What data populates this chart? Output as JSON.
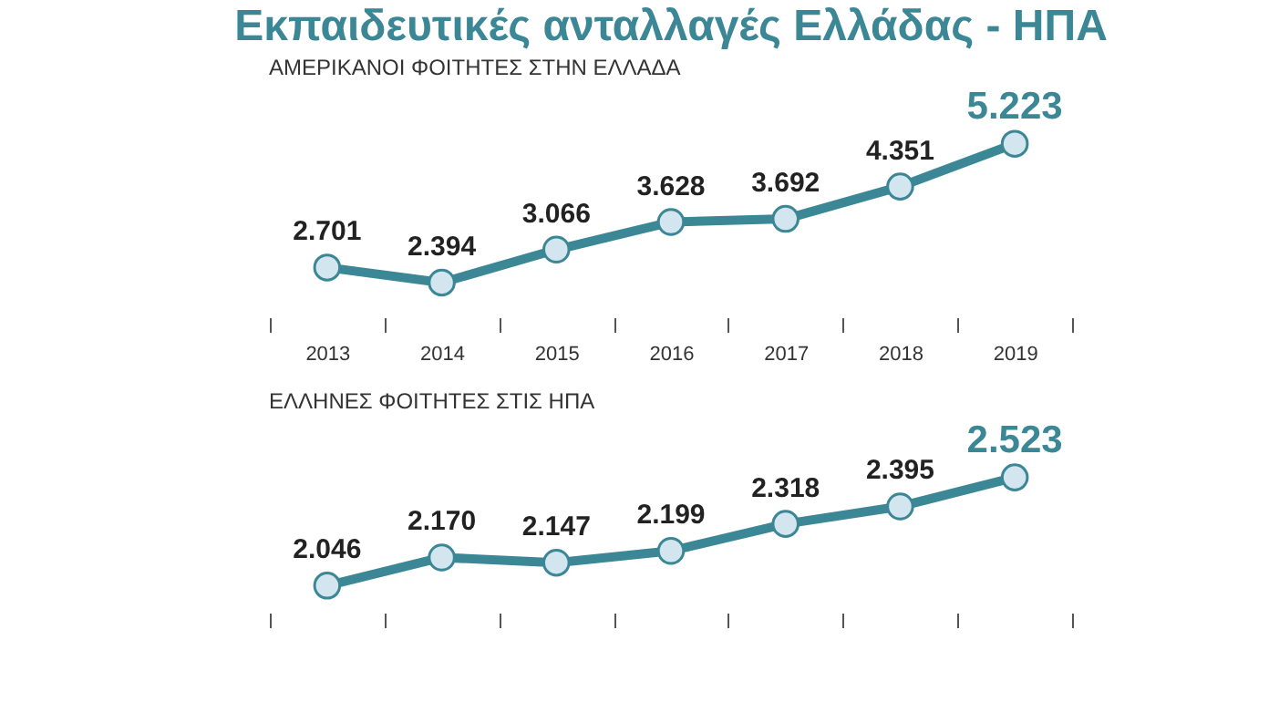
{
  "chart_data": [
    {
      "type": "line",
      "title": "Εκπαιδευτικές ανταλλαγές Ελλάδας - ΗΠΑ",
      "subtitle": "ΑΜΕΡΙΚΑΝΟΙ ΦΟΙΤΗΤΕΣ ΣΤΗΝ ΕΛΛΑΔΑ",
      "categories": [
        "2013",
        "2014",
        "2015",
        "2016",
        "2017",
        "2018",
        "2019"
      ],
      "marker": "circle",
      "line_style": "solid",
      "grid": false,
      "series": [
        {
          "color": "#3b8795",
          "values": [
            2701,
            2394,
            3066,
            3628,
            3692,
            4351,
            5223
          ],
          "value_labels": [
            "2.701",
            "2.394",
            "3.066",
            "3.628",
            "3.692",
            "4.351",
            "5.223"
          ]
        }
      ]
    },
    {
      "type": "line",
      "subtitle": "ΕΛΛΗΝΕΣ ΦΟΙΤΗΤΕΣ ΣΤΙΣ ΗΠΑ",
      "categories": [
        null,
        null,
        null,
        null,
        null,
        null,
        null
      ],
      "marker": "circle",
      "line_style": "solid",
      "grid": false,
      "series": [
        {
          "color": "#3b8795",
          "values": [
            2046,
            2170,
            2147,
            2199,
            2318,
            2395,
            2523
          ],
          "value_labels": [
            "2.046",
            "2.170",
            "2.147",
            "2.199",
            "2.318",
            "2.395",
            "2.523"
          ]
        }
      ]
    }
  ]
}
